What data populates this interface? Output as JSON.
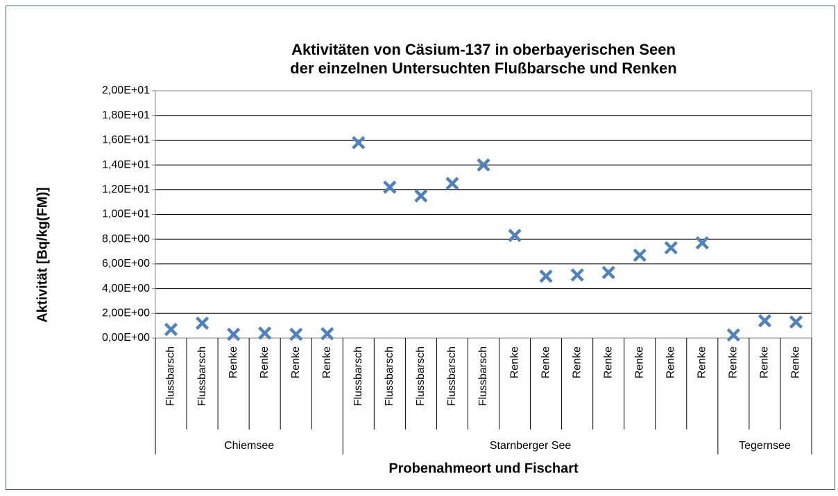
{
  "chart_data": {
    "type": "scatter",
    "title": [
      "Aktivitäten von Cäsium-137 in oberbayerischen Seen",
      "der einzelnen Untersuchten Flußbarsche und Renken"
    ],
    "y_label": "Aktivität [Bq/kg(FM)]",
    "x_label": "Probenahmeort und Fischart",
    "color": "#4f81bd",
    "marker": "x",
    "grid": true,
    "ylim": [
      0,
      20
    ],
    "yticks": [
      {
        "value": 0,
        "label": "0,00E+00"
      },
      {
        "value": 2,
        "label": "2,00E+00"
      },
      {
        "value": 4,
        "label": "4,00E+00"
      },
      {
        "value": 6,
        "label": "6,00E+00"
      },
      {
        "value": 8,
        "label": "8,00E+00"
      },
      {
        "value": 10,
        "label": "1,00E+01"
      },
      {
        "value": 12,
        "label": "1,20E+01"
      },
      {
        "value": 14,
        "label": "1,40E+01"
      },
      {
        "value": 16,
        "label": "1,60E+01"
      },
      {
        "value": 18,
        "label": "1,80E+01"
      },
      {
        "value": 20,
        "label": "2,00E+01"
      }
    ],
    "groups": [
      {
        "name": "Chiemsee",
        "categories": [
          "Flussbarsch",
          "Flussbarsch",
          "Renke",
          "Renke",
          "Renke",
          "Renke"
        ],
        "values": [
          0.7,
          1.2,
          0.3,
          0.4,
          0.3,
          0.35
        ]
      },
      {
        "name": "Starnberger See",
        "categories": [
          "Flussbarsch",
          "Flussbarsch",
          "Flussbarsch",
          "Flussbarsch",
          "Flussbarsch",
          "Renke",
          "Renke",
          "Renke",
          "Renke",
          "Renke",
          "Renke",
          "Renke"
        ],
        "values": [
          15.8,
          12.2,
          11.5,
          12.5,
          14.0,
          8.3,
          5.0,
          5.1,
          5.3,
          6.7,
          7.3,
          7.7
        ]
      },
      {
        "name": "Tegernsee",
        "categories": [
          "Renke",
          "Renke",
          "Renke"
        ],
        "values": [
          0.25,
          1.4,
          1.3
        ]
      }
    ]
  }
}
